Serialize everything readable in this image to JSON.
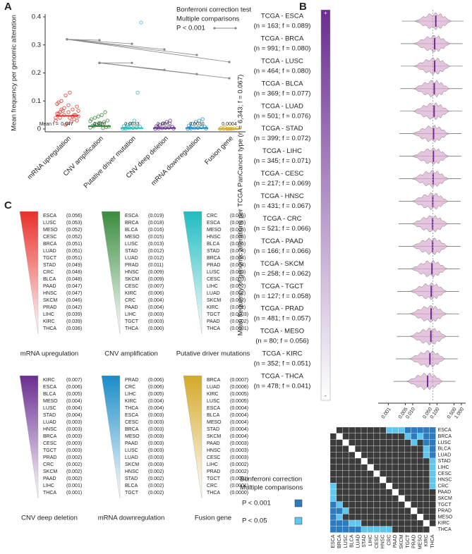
{
  "panel_labels": [
    "A",
    "B",
    "C"
  ],
  "chart_data": [
    {
      "type": "strip",
      "categories": [
        "mRNA upregulation",
        "CNV amplification",
        "Putative driver mutation",
        "CNV deep deletion",
        "mRNA downregulation",
        "Fusion gene"
      ],
      "values": [
        0.047,
        0.01,
        0.0033,
        0.0032,
        0.003,
        0.0004
      ],
      "value_labels": [
        "0.047",
        "0.010",
        "0.0033",
        "0.0032",
        "0.0030",
        "0.0004"
      ],
      "mean_prefix": "Mean f =",
      "colors": [
        "#e8302a",
        "#3a8c3f",
        "#1fbcc0",
        "#6a2d91",
        "#1a8cc8",
        "#d4a92a"
      ],
      "points": [
        [
          0.03,
          0.04,
          0.05,
          0.06,
          0.07,
          0.08,
          0.09,
          0.1,
          0.12,
          0.13,
          0.035,
          0.045,
          0.055,
          0.065,
          0.02,
          0.025,
          0.05,
          0.04,
          0.06,
          0.075,
          0.085,
          0.045,
          0.03,
          0.055,
          0.07,
          0.015,
          0.04,
          0.05,
          0.065,
          0.095
        ],
        [
          0.005,
          0.01,
          0.015,
          0.02,
          0.025,
          0.03,
          0.035,
          0.04,
          0.045,
          0.05,
          0.06,
          0.008,
          0.012,
          0.018,
          0.022,
          0.003,
          0.007,
          0.028
        ],
        [
          0.001,
          0.002,
          0.003,
          0.004,
          0.005,
          0.008,
          0.01,
          0.015,
          0.02,
          0.03,
          0.13,
          0.38,
          0.002,
          0.006
        ],
        [
          0.001,
          0.002,
          0.003,
          0.004,
          0.005,
          0.008,
          0.01,
          0.015,
          0.02,
          0.025,
          0.03,
          0.002,
          0.006
        ],
        [
          0.001,
          0.002,
          0.003,
          0.004,
          0.006,
          0.008,
          0.012,
          0.018,
          0.025,
          0.03,
          0.035,
          0.002,
          0.005
        ],
        [
          0,
          0.0002,
          0.0005,
          0.001,
          0.002,
          0.003,
          0.004,
          0.005,
          0.001,
          0.0003
        ]
      ],
      "ylabel": "Mean frequency per genomic alteration",
      "ylim": [
        0,
        0.4
      ],
      "yticks": [
        0,
        0.1,
        0.2,
        0.3,
        0.4
      ],
      "annotation": [
        "Bonferroni correction test",
        "Multiple comparisons",
        "P < 0.001"
      ],
      "comparisons": [
        {
          "from": 0,
          "to": 1,
          "y": [
            0.32,
            0.317
          ]
        },
        {
          "from": 0,
          "to": 2,
          "y": [
            0.32,
            0.304
          ]
        },
        {
          "from": 0,
          "to": 3,
          "y": [
            0.32,
            0.284
          ]
        },
        {
          "from": 0,
          "to": 4,
          "y": [
            0.32,
            0.264
          ]
        },
        {
          "from": 0,
          "to": 5,
          "y": [
            0.32,
            0.239
          ]
        },
        {
          "from": 1,
          "to": 2,
          "y": [
            0.236,
            0.236
          ]
        },
        {
          "from": 1,
          "to": 3,
          "y": [
            0.236,
            0.211
          ]
        },
        {
          "from": 1,
          "to": 4,
          "y": [
            0.236,
            0.196
          ]
        },
        {
          "from": 1,
          "to": 5,
          "y": [
            0.236,
            0.181
          ]
        }
      ]
    },
    {
      "type": "violin",
      "categories": [
        "TCGA - ESCA",
        "TCGA - BRCA",
        "TCGA - LUSC",
        "TCGA - BLCA",
        "TCGA - LUAD",
        "TCGA - STAD",
        "TCGA - LIHC",
        "TCGA - CESC",
        "TCGA - HNSC",
        "TCGA - CRC",
        "TCGA - PAAD",
        "TCGA - SKCM",
        "TCGA - TGCT",
        "TCGA - PRAD",
        "TCGA - MESO",
        "TCGA - KIRC",
        "TCGA - THCA"
      ],
      "sublabels": [
        "(n = 163; f = 0.089)",
        "(n = 991; f = 0.080)",
        "(n = 464; f = 0.080)",
        "(n = 369; f = 0.077)",
        "(n = 501; f = 0.076)",
        "(n = 399; f = 0.072)",
        "(n = 345; f = 0.071)",
        "(n = 217; f = 0.069)",
        "(n = 431; f = 0.067)",
        "(n = 521; f = 0.066)",
        "(n = 166; f = 0.066)",
        "(n = 258; f = 0.062)",
        "(n = 127; f = 0.058)",
        "(n = 481; f = 0.057)",
        "(n = 80; f = 0.056)",
        "(n = 352; f = 0.051)",
        "(n = 478; f = 0.041)"
      ],
      "values": [
        0.089,
        0.08,
        0.08,
        0.077,
        0.076,
        0.072,
        0.071,
        0.069,
        0.067,
        0.066,
        0.066,
        0.062,
        0.058,
        0.057,
        0.056,
        0.051,
        0.041
      ],
      "xlog": true,
      "xlim": [
        0.0005,
        1.5
      ],
      "xticks": [
        0.001,
        0.005,
        {
          "value": 0.01,
          "label": "0.010"
        },
        {
          "value": 0.05,
          "label": "0.050"
        },
        {
          "value": 0.1,
          "label": "0.100"
        },
        {
          "value": 0.5,
          "label": "0.500"
        },
        {
          "value": 1,
          "label": "1.000"
        }
      ],
      "reference": 0.067,
      "ylabel": "Mean frequency of genomic alterations per TCGA PanCancer type (n = 6,343; f = 0.067)",
      "colorbar_labels": [
        "+",
        "-"
      ],
      "color": "#6a2d91"
    },
    {
      "type": "heatmap",
      "rows": [
        "ESCA",
        "BRCA",
        "LUSC",
        "BLCA",
        "LUAD",
        "STAD",
        "LIHC",
        "CESC",
        "HNSC",
        "CRC",
        "PAAD",
        "SKCM",
        "TGCT",
        "PRAD",
        "MESO",
        "KIRC",
        "THCA"
      ],
      "columns": [
        "ESCA",
        "BRCA",
        "LUSC",
        "BLCA",
        "LUAD",
        "STAD",
        "LIHC",
        "CESC",
        "HNSC",
        "CRC",
        "PAAD",
        "SKCM",
        "TGCT",
        "PRAD",
        "MESO",
        "KIRC",
        "THCA"
      ],
      "matrix": [
        [
          null,
          0,
          0,
          0,
          0,
          0,
          0,
          0,
          0,
          1,
          1,
          1,
          2,
          2,
          2,
          2,
          2
        ],
        [
          0,
          null,
          0,
          0,
          0,
          0,
          0,
          0,
          0,
          0,
          0,
          0,
          1,
          2,
          1,
          2,
          2
        ],
        [
          0,
          0,
          null,
          0,
          0,
          0,
          0,
          0,
          0,
          0,
          0,
          0,
          0,
          1,
          0,
          2,
          2
        ],
        [
          0,
          0,
          0,
          null,
          0,
          0,
          0,
          0,
          0,
          0,
          0,
          0,
          0,
          0,
          0,
          1,
          2
        ],
        [
          0,
          0,
          0,
          0,
          null,
          0,
          0,
          0,
          0,
          0,
          0,
          0,
          0,
          0,
          0,
          1,
          2
        ],
        [
          0,
          0,
          0,
          0,
          0,
          null,
          0,
          0,
          0,
          0,
          0,
          0,
          0,
          0,
          0,
          0,
          1
        ],
        [
          0,
          0,
          0,
          0,
          0,
          0,
          null,
          0,
          0,
          0,
          0,
          0,
          0,
          0,
          0,
          0,
          1
        ],
        [
          0,
          0,
          0,
          0,
          0,
          0,
          0,
          null,
          0,
          0,
          0,
          0,
          0,
          0,
          0,
          0,
          1
        ],
        [
          0,
          0,
          0,
          0,
          0,
          0,
          0,
          0,
          null,
          0,
          0,
          0,
          0,
          0,
          0,
          0,
          1
        ],
        [
          1,
          0,
          0,
          0,
          0,
          0,
          0,
          0,
          0,
          null,
          0,
          0,
          0,
          0,
          0,
          0,
          1
        ],
        [
          1,
          0,
          0,
          0,
          0,
          0,
          0,
          0,
          0,
          0,
          null,
          0,
          0,
          0,
          0,
          0,
          0
        ],
        [
          1,
          0,
          0,
          0,
          0,
          0,
          0,
          0,
          0,
          0,
          0,
          null,
          0,
          0,
          0,
          0,
          0
        ],
        [
          2,
          1,
          0,
          0,
          0,
          0,
          0,
          0,
          0,
          0,
          0,
          0,
          null,
          0,
          0,
          0,
          0
        ],
        [
          2,
          2,
          1,
          0,
          0,
          0,
          0,
          0,
          0,
          0,
          0,
          0,
          0,
          null,
          0,
          0,
          0
        ],
        [
          2,
          1,
          0,
          0,
          0,
          0,
          0,
          0,
          0,
          0,
          0,
          0,
          0,
          0,
          null,
          0,
          0
        ],
        [
          2,
          2,
          2,
          1,
          1,
          0,
          0,
          0,
          0,
          0,
          0,
          0,
          0,
          0,
          0,
          null,
          0
        ],
        [
          2,
          2,
          2,
          2,
          2,
          1,
          1,
          1,
          1,
          1,
          0,
          0,
          0,
          0,
          0,
          0,
          null
        ]
      ],
      "level_colors": [
        "#3b3b3b",
        "#5ec6ef",
        "#2d7bbf"
      ],
      "legend_title": [
        "Bonferroni correction",
        "Multiple comparisons"
      ],
      "legend": [
        {
          "label": "P < 0.001",
          "level": 2
        },
        {
          "label": "P < 0.05",
          "level": 1
        }
      ]
    }
  ],
  "rankings": [
    {
      "title": "mRNA upregulation",
      "color": "#e8302a",
      "items": [
        [
          "ESCA",
          "(0.056)"
        ],
        [
          "LUSC",
          "(0.053)"
        ],
        [
          "MESO",
          "(0.052)"
        ],
        [
          "CESC",
          "(0.052)"
        ],
        [
          "BRCA",
          "(0.051)"
        ],
        [
          "LUAD",
          "(0.051)"
        ],
        [
          "TGCT",
          "(0.051)"
        ],
        [
          "STAD",
          "(0.049)"
        ],
        [
          "CRC",
          "(0.048)"
        ],
        [
          "BLCA",
          "(0.048)"
        ],
        [
          "PAAD",
          "(0.047)"
        ],
        [
          "HNSC",
          "(0.047)"
        ],
        [
          "SKCM",
          "(0.046)"
        ],
        [
          "PRAD",
          "(0.042)"
        ],
        [
          "LIHC",
          "(0.039)"
        ],
        [
          "KIRC",
          "(0.039)"
        ],
        [
          "THCA",
          "(0.036)"
        ]
      ]
    },
    {
      "title": "CNV amplification",
      "color": "#3a8c3f",
      "items": [
        [
          "ESCA",
          "(0.019)"
        ],
        [
          "BRCA",
          "(0.018)"
        ],
        [
          "BLCA",
          "(0.016)"
        ],
        [
          "MESO",
          "(0.015)"
        ],
        [
          "LUSC",
          "(0.013)"
        ],
        [
          "STAD",
          "(0.012)"
        ],
        [
          "LUAD",
          "(0.012)"
        ],
        [
          "PRAD",
          "(0.011)"
        ],
        [
          "HNSC",
          "(0.009)"
        ],
        [
          "SKCM",
          "(0.009)"
        ],
        [
          "CESC",
          "(0.007)"
        ],
        [
          "KIRC",
          "(0.006)"
        ],
        [
          "CRC",
          "(0.004)"
        ],
        [
          "PAAD",
          "(0.004)"
        ],
        [
          "LIHC",
          "(0.003)"
        ],
        [
          "TGCT",
          "(0.003)"
        ],
        [
          "THCA",
          "(0.000)"
        ]
      ]
    },
    {
      "title": "Putative driver mutations",
      "color": "#1fbcc0",
      "items": [
        [
          "CRC",
          "(0.005)"
        ],
        [
          "ESCA",
          "(0.005)"
        ],
        [
          "MESO",
          "(0.005)"
        ],
        [
          "HNSC",
          "(0.005)"
        ],
        [
          "BLCA",
          "(0.005)"
        ],
        [
          "STAD",
          "(0.004)"
        ],
        [
          "BRCA",
          "(0.004)"
        ],
        [
          "PRAD",
          "(0.004)"
        ],
        [
          "LUSC",
          "(0.003)"
        ],
        [
          "CESC",
          "(0.003)"
        ],
        [
          "LIHC",
          "(0.002)"
        ],
        [
          "LUAD",
          "(0.002)"
        ],
        [
          "SKCM",
          "(0.002)"
        ],
        [
          "KIRC",
          "(0.001)"
        ],
        [
          "TGCT",
          "(0.0003)"
        ],
        [
          "PAAD",
          "(0.0002)"
        ],
        [
          "THCA",
          "(0.0001)"
        ]
      ]
    },
    {
      "title": "CNV deep deletion",
      "color": "#6a2d91",
      "items": [
        [
          "KIRC",
          "(0.007)"
        ],
        [
          "ESCA",
          "(0.006)"
        ],
        [
          "BLCA",
          "(0.005)"
        ],
        [
          "MESO",
          "(0.004)"
        ],
        [
          "LUSC",
          "(0.004)"
        ],
        [
          "STAD",
          "(0.004)"
        ],
        [
          "LUAD",
          "(0.003)"
        ],
        [
          "HNSC",
          "(0.003)"
        ],
        [
          "BRCA",
          "(0.003)"
        ],
        [
          "CESC",
          "(0.003)"
        ],
        [
          "TGCT",
          "(0.003)"
        ],
        [
          "PRAD",
          "(0.002)"
        ],
        [
          "CRC",
          "(0.002)"
        ],
        [
          "SKCM",
          "(0.002)"
        ],
        [
          "PAAD",
          "(0.002)"
        ],
        [
          "LIHC",
          "(0.001)"
        ],
        [
          "THCA",
          "(0.001)"
        ]
      ]
    },
    {
      "title": "mRNA downregulation",
      "color": "#1a8cc8",
      "items": [
        [
          "PRAD",
          "(0.006)"
        ],
        [
          "CRC",
          "(0.006)"
        ],
        [
          "LIHC",
          "(0.005)"
        ],
        [
          "KIRC",
          "(0.004)"
        ],
        [
          "THCA",
          "(0.004)"
        ],
        [
          "ESCA",
          "(0.003)"
        ],
        [
          "CESC",
          "(0.003)"
        ],
        [
          "BRCA",
          "(0.003)"
        ],
        [
          "MESO",
          "(0.003)"
        ],
        [
          "PAAD",
          "(0.003)"
        ],
        [
          "LUSC",
          "(0.003)"
        ],
        [
          "LUAD",
          "(0.003)"
        ],
        [
          "SKCM",
          "(0.003)"
        ],
        [
          "HNSC",
          "(0.002)"
        ],
        [
          "STAD",
          "(0.002)"
        ],
        [
          "BLCA",
          "(0.002)"
        ],
        [
          "TGCT",
          "(0.002)"
        ]
      ]
    },
    {
      "title": "Fusion gene",
      "color": "#d4a92a",
      "items": [
        [
          "BRCA",
          "(0.0007)"
        ],
        [
          "LUAD",
          "(0.0006)"
        ],
        [
          "KIRC",
          "(0.0005)"
        ],
        [
          "LUSC",
          "(0.0005)"
        ],
        [
          "ESCA",
          "(0.0004)"
        ],
        [
          "BLCA",
          "(0.0004)"
        ],
        [
          "MESO",
          "(0.0004)"
        ],
        [
          "STAD",
          "(0.0004)"
        ],
        [
          "SKCM",
          "(0.0004)"
        ],
        [
          "PAAD",
          "(0.0003)"
        ],
        [
          "HNSC",
          "(0.0003)"
        ],
        [
          "CESC",
          "(0.0003)"
        ],
        [
          "LIHC",
          "(0.0002)"
        ],
        [
          "PRAD",
          "(0.0002)"
        ],
        [
          "TGCT",
          "(0.0001)"
        ],
        [
          "CRC",
          "(0.0001)"
        ],
        [
          "THCA",
          "(0.0000)"
        ]
      ]
    }
  ]
}
